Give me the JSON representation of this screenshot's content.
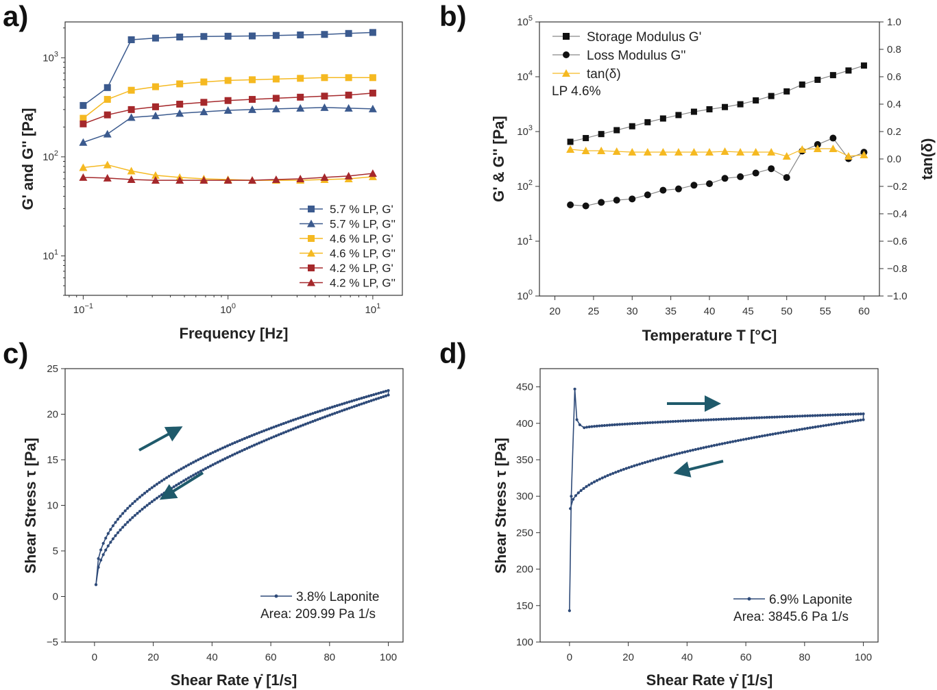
{
  "chart_data": [
    {
      "panel": "a)",
      "type": "line",
      "xlabel": "Frequency [Hz]",
      "ylabel": "G' and G'' [Pa]",
      "xscale": "log",
      "yscale": "log",
      "xlim": [
        0.075,
        16
      ],
      "ylim": [
        4,
        2300
      ],
      "x_ticks": [
        {
          "v": 0.1,
          "b": "10",
          "e": "−1"
        },
        {
          "v": 1,
          "b": "10",
          "e": "0"
        },
        {
          "v": 10,
          "b": "10",
          "e": "1"
        }
      ],
      "y_ticks": [
        {
          "v": 10,
          "b": "10",
          "e": "1"
        },
        {
          "v": 100,
          "b": "10",
          "e": "2"
        },
        {
          "v": 1000,
          "b": "10",
          "e": "3"
        }
      ],
      "x": [
        0.1,
        0.147,
        0.215,
        0.316,
        0.464,
        0.681,
        1.0,
        1.47,
        2.15,
        3.16,
        4.64,
        6.81,
        10.0
      ],
      "legend_position": "lower-right",
      "series": [
        {
          "name": "5.7 % LP, G'",
          "marker": "square",
          "color": "#3b5a8e",
          "values": [
            330,
            500,
            1520,
            1580,
            1620,
            1640,
            1650,
            1660,
            1680,
            1700,
            1720,
            1760,
            1800
          ]
        },
        {
          "name": "5.7 % LP, G''",
          "marker": "triangle",
          "color": "#3b5a8e",
          "values": [
            140,
            170,
            250,
            260,
            275,
            285,
            295,
            300,
            305,
            310,
            315,
            310,
            305
          ]
        },
        {
          "name": "4.6 % LP, G'",
          "marker": "square",
          "color": "#f5b921",
          "values": [
            245,
            380,
            470,
            510,
            545,
            570,
            590,
            600,
            610,
            620,
            630,
            630,
            630
          ]
        },
        {
          "name": "4.6 % LP, G''",
          "marker": "triangle",
          "color": "#f5b921",
          "values": [
            78,
            83,
            72,
            65,
            62,
            60,
            59,
            58,
            58,
            58,
            59,
            60,
            63
          ]
        },
        {
          "name": "4.2 % LP, G'",
          "marker": "square",
          "color": "#a5282b",
          "values": [
            215,
            265,
            300,
            320,
            340,
            355,
            370,
            380,
            390,
            400,
            410,
            420,
            440
          ]
        },
        {
          "name": "4.2 % LP, G''",
          "marker": "triangle",
          "color": "#a5282b",
          "values": [
            62,
            61,
            59,
            58,
            58,
            58,
            58,
            58,
            59,
            60,
            62,
            64,
            68
          ]
        }
      ]
    },
    {
      "panel": "b)",
      "type": "line",
      "xlabel": "Temperature T [°C]",
      "ylabel": "G' & G'' [Pa]",
      "y2label": "tan(δ)",
      "xlim": [
        18,
        62
      ],
      "ylim": [
        1,
        100000
      ],
      "yscale": "log",
      "y2lim": [
        -1.0,
        1.0
      ],
      "x_ticks": [
        20,
        25,
        30,
        35,
        40,
        45,
        50,
        55,
        60
      ],
      "y_ticks": [
        {
          "v": 1,
          "b": "10",
          "e": "0"
        },
        {
          "v": 10,
          "b": "10",
          "e": "1"
        },
        {
          "v": 100,
          "b": "10",
          "e": "2"
        },
        {
          "v": 1000,
          "b": "10",
          "e": "3"
        },
        {
          "v": 10000,
          "b": "10",
          "e": "4"
        },
        {
          "v": 100000,
          "b": "10",
          "e": "5"
        }
      ],
      "y2_ticks": [
        "1.0",
        "0.8",
        "0.6",
        "0.4",
        "0.2",
        "0.0",
        "−0.2",
        "−0.4",
        "−0.6",
        "−0.8",
        "−1.0"
      ],
      "annotation": "LP 4.6%",
      "legend_position": "top-left",
      "x": [
        22,
        24,
        26,
        28,
        30,
        32,
        34,
        36,
        38,
        40,
        42,
        44,
        46,
        48,
        50,
        52,
        54,
        56,
        58,
        60
      ],
      "series": [
        {
          "name": "Storage Modulus G'",
          "marker": "square",
          "color": "#111111",
          "axis": "left",
          "values": [
            650,
            760,
            900,
            1060,
            1250,
            1480,
            1730,
            2000,
            2300,
            2550,
            2800,
            3150,
            3700,
            4450,
            5400,
            7200,
            8800,
            10700,
            13000,
            16000
          ]
        },
        {
          "name": "Loss Modulus G''",
          "marker": "circle",
          "color": "#111111",
          "axis": "left",
          "values": [
            46,
            44,
            51,
            56,
            59,
            70,
            85,
            90,
            105,
            112,
            140,
            150,
            175,
            210,
            145,
            440,
            580,
            760,
            320,
            420
          ]
        },
        {
          "name": "tan(δ)",
          "marker": "triangle",
          "color": "#f5b921",
          "text_color": "#f08c1e",
          "axis": "right",
          "values": [
            0.07,
            0.06,
            0.06,
            0.055,
            0.05,
            0.05,
            0.05,
            0.05,
            0.05,
            0.05,
            0.055,
            0.05,
            0.05,
            0.05,
            0.02,
            0.07,
            0.075,
            0.075,
            0.02,
            0.03
          ]
        }
      ]
    },
    {
      "panel": "c)",
      "type": "line",
      "xlabel": "Shear Rate γ̇ [1/s]",
      "ylabel": "Shear Stress τ [Pa]",
      "xlim": [
        -10,
        105
      ],
      "ylim": [
        -5,
        25
      ],
      "x_ticks": [
        0,
        20,
        40,
        60,
        80,
        100
      ],
      "y_ticks": [
        {
          "v": -5,
          "t": "−5"
        },
        {
          "v": 0,
          "t": "0"
        },
        {
          "v": 5,
          "t": "5"
        },
        {
          "v": 10,
          "t": "10"
        },
        {
          "v": 15,
          "t": "15"
        },
        {
          "v": 20,
          "t": "20"
        },
        {
          "v": 25,
          "t": "25"
        }
      ],
      "legend_position": "lower-right",
      "series": [
        {
          "name": "3.8% Laponite",
          "color": "#2e4a78",
          "marker": "circle",
          "up": {
            "x0": 0.5,
            "x1": 100,
            "y0": 1.3,
            "y1": 22.6,
            "exponent": 0.42
          },
          "down": {
            "x0": 100,
            "x1": 0.5,
            "y0": 22.1,
            "y1": 1.3,
            "exponent": 0.5
          }
        }
      ],
      "area_text": "Area: 209.99 Pa 1/s"
    },
    {
      "panel": "d)",
      "type": "line",
      "xlabel": "Shear Rate γ̇ [1/s]",
      "ylabel": "Shear Stress τ [Pa]",
      "xlim": [
        -10,
        105
      ],
      "ylim": [
        100,
        475
      ],
      "x_ticks": [
        0,
        20,
        40,
        60,
        80,
        100
      ],
      "y_ticks": [
        {
          "v": 100,
          "t": "100"
        },
        {
          "v": 150,
          "t": "150"
        },
        {
          "v": 200,
          "t": "200"
        },
        {
          "v": 250,
          "t": "250"
        },
        {
          "v": 300,
          "t": "300"
        },
        {
          "v": 350,
          "t": "350"
        },
        {
          "v": 400,
          "t": "400"
        },
        {
          "v": 450,
          "t": "450"
        }
      ],
      "legend_position": "lower-right",
      "series": [
        {
          "name": "6.9% Laponite",
          "color": "#2e4a78",
          "marker": "circle",
          "peak": {
            "x": 1.8,
            "y": 447
          },
          "start": {
            "x": 0,
            "y": 143
          },
          "up_plateau": {
            "x0": 5,
            "x1": 100,
            "y0": 394,
            "y1": 413
          },
          "down": {
            "x0": 100,
            "x1": 0.3,
            "y0": 405,
            "y1": 283
          }
        }
      ],
      "area_text": "Area: 3845.6 Pa 1/s"
    }
  ]
}
